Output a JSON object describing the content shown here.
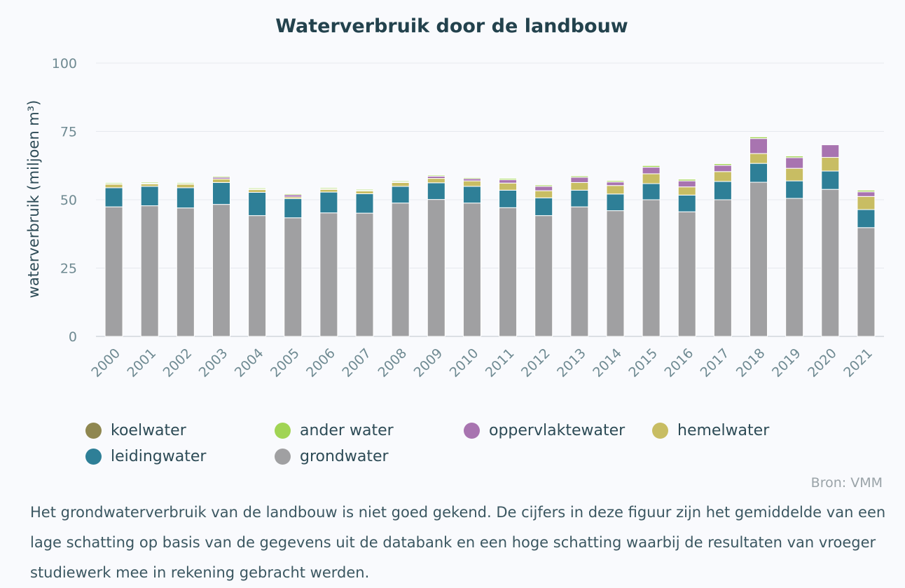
{
  "chart_data": {
    "type": "bar",
    "stacked": true,
    "title": "Waterverbruik door de landbouw",
    "ylabel": "waterverbruik (miljoen m³)",
    "xlabel": "",
    "ylim": [
      0,
      100
    ],
    "yticks": [
      0,
      25,
      50,
      75,
      100
    ],
    "grid": true,
    "legend_position": "bottom",
    "categories": [
      "2000",
      "2001",
      "2002",
      "2003",
      "2004",
      "2005",
      "2006",
      "2007",
      "2008",
      "2009",
      "2010",
      "2011",
      "2012",
      "2013",
      "2014",
      "2015",
      "2016",
      "2017",
      "2018",
      "2019",
      "2020",
      "2021"
    ],
    "series": [
      {
        "name": "grondwater",
        "color": "#a0a0a2",
        "values": [
          47.4,
          47.8,
          47.0,
          48.3,
          44.2,
          43.4,
          45.2,
          45.1,
          48.8,
          50.1,
          48.8,
          47.1,
          44.2,
          47.4,
          46.0,
          50.0,
          45.6,
          50.0,
          56.4,
          50.5,
          53.8,
          39.8
        ]
      },
      {
        "name": "leidingwater",
        "color": "#2e7f97",
        "values": [
          7.0,
          7.1,
          7.4,
          8.0,
          8.5,
          7.0,
          7.6,
          7.1,
          6.1,
          6.1,
          6.1,
          6.4,
          6.5,
          6.1,
          6.1,
          5.9,
          6.1,
          6.7,
          6.9,
          6.4,
          6.7,
          6.6
        ]
      },
      {
        "name": "hemelwater",
        "color": "#c8bd63",
        "values": [
          1.3,
          0.9,
          1.3,
          1.3,
          1.0,
          0.6,
          1.0,
          1.0,
          1.4,
          1.6,
          2.0,
          2.6,
          2.6,
          2.8,
          3.1,
          3.6,
          3.0,
          3.6,
          3.6,
          4.6,
          5.0,
          4.8
        ]
      },
      {
        "name": "oppervlaktewater",
        "color": "#a874b0",
        "values": [
          0.2,
          0.2,
          0.2,
          0.6,
          0.2,
          0.8,
          0.2,
          0.2,
          0.2,
          0.8,
          0.8,
          1.2,
          1.6,
          1.9,
          1.3,
          2.4,
          2.2,
          2.3,
          5.5,
          3.9,
          4.6,
          1.7
        ]
      },
      {
        "name": "ander water",
        "color": "#a1d454",
        "values": [
          0.4,
          0.4,
          0.4,
          0.4,
          0.4,
          0.4,
          0.4,
          0.4,
          0.4,
          0.4,
          0.4,
          0.5,
          0.5,
          0.5,
          0.5,
          0.6,
          0.6,
          0.6,
          0.6,
          0.6,
          0.0,
          0.6
        ]
      },
      {
        "name": "koelwater",
        "color": "#8f8750",
        "values": [
          0,
          0,
          0,
          0,
          0,
          0,
          0,
          0,
          0,
          0,
          0,
          0,
          0,
          0,
          0,
          0,
          0,
          0,
          0,
          0,
          0,
          0
        ]
      }
    ]
  },
  "legend": [
    {
      "label": "koelwater",
      "color": "#8f8750"
    },
    {
      "label": "ander water",
      "color": "#a1d454"
    },
    {
      "label": "oppervlaktewater",
      "color": "#a874b0"
    },
    {
      "label": "hemelwater",
      "color": "#c8bd63"
    },
    {
      "label": "leidingwater",
      "color": "#2e7f97"
    },
    {
      "label": "grondwater",
      "color": "#a0a0a2"
    }
  ],
  "source": "Bron: VMM",
  "note": "Het grondwaterverbruik van de landbouw is niet goed gekend. De cijfers in deze figuur zijn het gemiddelde van een lage schatting op basis van de gegevens uit de databank en een hoge schatting waarbij de resultaten van vroeger studiewerk mee in rekening gebracht werden."
}
